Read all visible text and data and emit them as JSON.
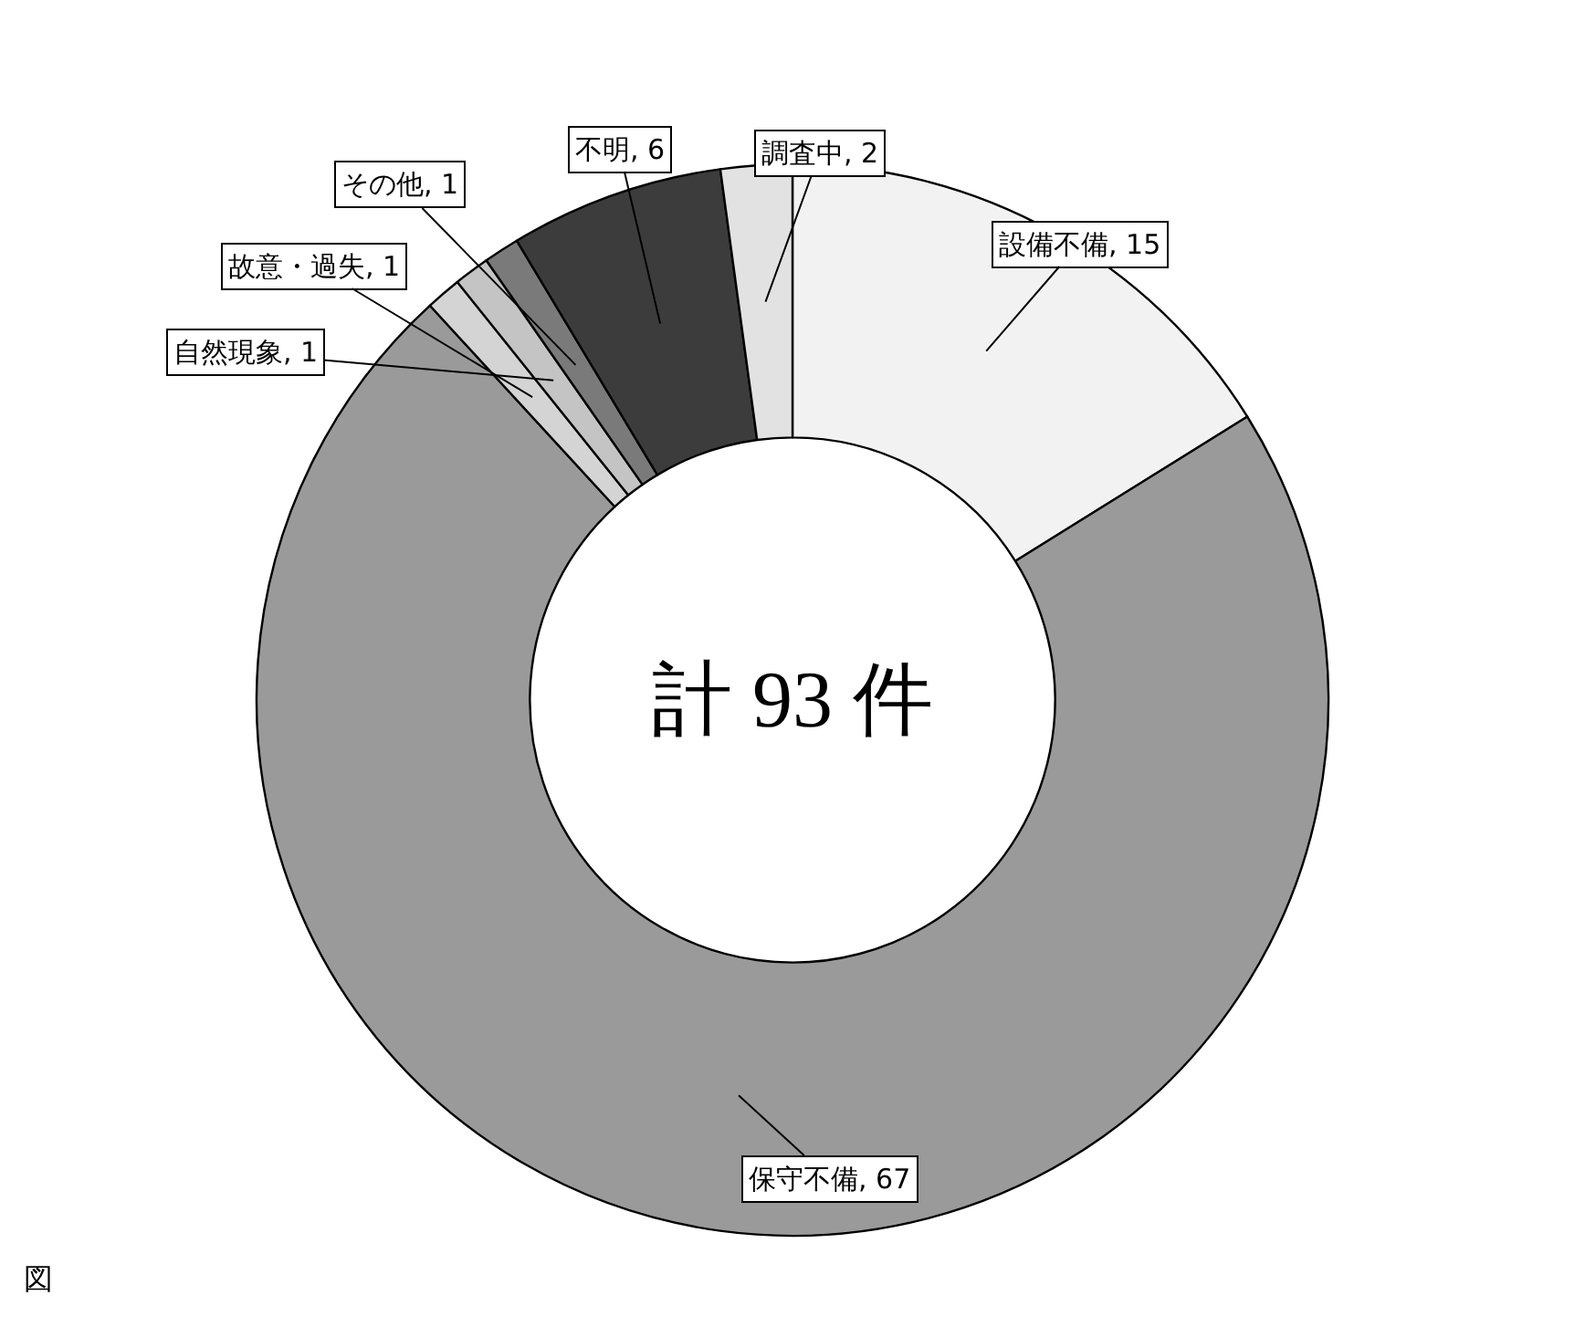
{
  "chart_data": {
    "type": "donut",
    "categories": [
      "設備不備, 15",
      "保守不備, 67",
      "故意・過失, 1",
      "自然現象, 1",
      "その他, 1",
      "不明, 6",
      "調査中, 2"
    ],
    "values": [
      15,
      67,
      1,
      1,
      1,
      6,
      2
    ],
    "colors": [
      "#f2f2f2",
      "#9a9a9a",
      "#d4d4d4",
      "#c4c4c4",
      "#7a7a7a",
      "#3c3c3c",
      "#e2e2e2"
    ],
    "legend": false,
    "annotations": [
      "計 93 件",
      "図"
    ]
  }
}
